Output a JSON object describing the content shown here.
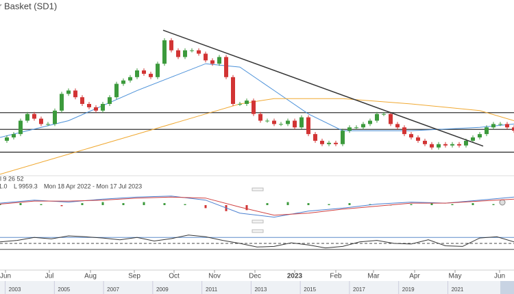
{
  "chart_data": {
    "type": "candlestick-line",
    "title": "r Basket (SD1)",
    "indicator_label": "ll 9 26 52",
    "info_labels": [
      "1.0",
      "L 9959.3",
      "Mon 18 Apr 2022 - Mon 17 Jul 2023"
    ],
    "xlim": [
      0,
      75
    ],
    "xticks": [
      {
        "value": 0.8,
        "label": "Jun"
      },
      {
        "value": 7.2,
        "label": "Jul"
      },
      {
        "value": 13.2,
        "label": "Aug"
      },
      {
        "value": 19.6,
        "label": "Sep"
      },
      {
        "value": 25.4,
        "label": "Oct"
      },
      {
        "value": 31.3,
        "label": "Nov"
      },
      {
        "value": 37.2,
        "label": "Dec"
      },
      {
        "value": 43,
        "label": "2023"
      },
      {
        "value": 49,
        "label": "Feb"
      },
      {
        "value": 54.5,
        "label": "Mar"
      },
      {
        "value": 60.5,
        "label": "Apr"
      },
      {
        "value": 66.4,
        "label": "May"
      },
      {
        "value": 72.9,
        "label": "Jun"
      }
    ],
    "ylim": [
      0,
      250
    ],
    "up_color": "#3c9a3c",
    "down_color": "#d23434",
    "values": [
      45,
      50,
      55,
      75,
      85,
      78,
      70,
      70,
      90,
      115,
      120,
      110,
      100,
      95,
      90,
      100,
      110,
      130,
      135,
      140,
      150,
      145,
      140,
      160,
      195,
      180,
      170,
      180,
      180,
      175,
      165,
      160,
      170,
      140,
      100,
      100,
      105,
      85,
      75,
      75,
      70,
      70,
      75,
      65,
      80,
      55,
      45,
      40,
      42,
      40,
      60,
      65,
      65,
      70,
      75,
      85,
      85,
      70,
      65,
      55,
      50,
      45,
      40,
      35,
      40,
      38,
      40,
      38,
      45,
      50,
      55,
      65,
      70,
      70,
      65,
      60
    ],
    "series": [
      {
        "name": "MA fast",
        "color": "#4a90d9",
        "x": [
          0,
          10,
          20,
          25,
          30,
          35,
          40,
          45,
          50,
          55,
          60,
          70,
          75
        ],
        "values": [
          50,
          75,
          120,
          140,
          160,
          155,
          120,
          85,
          60,
          60,
          60,
          65,
          70
        ]
      },
      {
        "name": "MA slow",
        "color": "#f0a830",
        "x": [
          0,
          10,
          20,
          30,
          35,
          40,
          50,
          60,
          70,
          75
        ],
        "values": [
          -5,
          25,
          55,
          85,
          100,
          108,
          108,
          100,
          90,
          75
        ]
      }
    ],
    "levels": [
      87,
      62,
      28
    ],
    "trendline": {
      "x": [
        23.8,
        70.5
      ],
      "values": [
        210,
        37
      ]
    },
    "macd": {
      "ylim": [
        -1.5,
        1.5
      ],
      "x": [
        0,
        5,
        10,
        15,
        20,
        25,
        30,
        35,
        40,
        45,
        50,
        55,
        60,
        65,
        70,
        75
      ],
      "line": [
        0.2,
        0.5,
        0.3,
        0.6,
        0.8,
        0.9,
        0.5,
        -0.8,
        -1.2,
        -0.6,
        -0.3,
        0.1,
        0.3,
        0.2,
        0.5,
        0.8
      ],
      "signal": [
        0.1,
        0.4,
        0.4,
        0.5,
        0.7,
        0.8,
        0.7,
        -0.2,
        -1.0,
        -0.8,
        -0.4,
        -0.1,
        0.2,
        0.2,
        0.4,
        0.6
      ],
      "hist_x": [
        0,
        3,
        6,
        9,
        12,
        15,
        18,
        21,
        24,
        27,
        30,
        33,
        36,
        39,
        42,
        45,
        48,
        51,
        54,
        57,
        60,
        63,
        66,
        69,
        72
      ],
      "hist": [
        0.1,
        0.2,
        0.1,
        -0.1,
        0.2,
        0.3,
        0.2,
        0.3,
        0.2,
        0.1,
        -0.3,
        -0.6,
        -0.5,
        0.2,
        0.3,
        0.2,
        0.1,
        0.2,
        0.1,
        0.0,
        0.1,
        0.2,
        0.1,
        0.2,
        0.1
      ]
    },
    "rsi": {
      "ylim": [
        0,
        100
      ],
      "levels": [
        70,
        50,
        30
      ],
      "x": [
        0,
        2.5,
        5,
        7.5,
        10,
        12.5,
        15,
        17.5,
        20,
        22.5,
        25,
        27.5,
        30,
        32.5,
        35,
        37.5,
        40,
        42.5,
        45,
        47.5,
        50,
        52.5,
        55,
        57.5,
        60,
        62.5,
        65,
        67.5,
        70,
        72.5,
        75
      ],
      "values": [
        55,
        60,
        70,
        65,
        75,
        72,
        68,
        62,
        70,
        58,
        66,
        78,
        72,
        60,
        50,
        38,
        40,
        52,
        45,
        35,
        40,
        55,
        60,
        50,
        48,
        62,
        42,
        40,
        68,
        72,
        55
      ]
    },
    "navigator": {
      "xlim": [
        2002.4,
        2023.3
      ],
      "xticks": [
        2003,
        2005,
        2007,
        2009,
        2011,
        2013,
        2015,
        2017,
        2019,
        2021
      ]
    }
  }
}
